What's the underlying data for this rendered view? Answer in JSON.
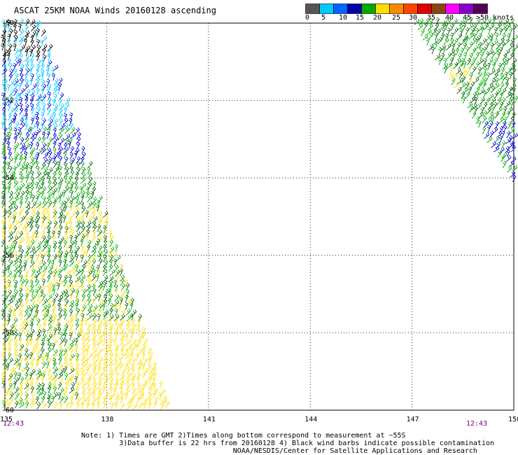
{
  "title": "ASCAT 25KM NOAA Winds 20160128 ascending",
  "colorbar": {
    "colors": [
      "#555555",
      "#00c8ff",
      "#0064ff",
      "#0000aa",
      "#00aa00",
      "#ffdd00",
      "#ff8800",
      "#ff4400",
      "#dd0000",
      "#8b4513",
      "#ff00ff",
      "#8800cc",
      "#550055"
    ],
    "labels": [
      "0",
      "5",
      "10",
      "15",
      "20",
      "25",
      "30",
      "35",
      "40",
      "45",
      ">50 knots"
    ]
  },
  "axes": {
    "lat_labels": [
      "-50",
      "-52",
      "-54",
      "-56",
      "-58",
      "-60"
    ],
    "lon_labels": [
      "135",
      "138",
      "141",
      "144",
      "147",
      "150"
    ],
    "lat_range": [
      -60,
      -50
    ],
    "lon_range": [
      135,
      150
    ]
  },
  "times": {
    "left": "12:43",
    "right": "12:43"
  },
  "notes": {
    "line1": "Note: 1) Times are GMT 2)Times along bottom correspond to measurement at ~55S",
    "line2": "3)Data buffer is 22 hrs from 20160128 4) Black wind barbs indicate possible contamination",
    "line3": "NOAA/NESDIS/Center for Satellite Applications and Research"
  },
  "legend_colors": {
    "black": "#000000",
    "cyan": "#00c8ff",
    "blue": "#0000cc",
    "green": "#00aa00",
    "darkgreen": "#006600",
    "yellow": "#ffdd00"
  }
}
